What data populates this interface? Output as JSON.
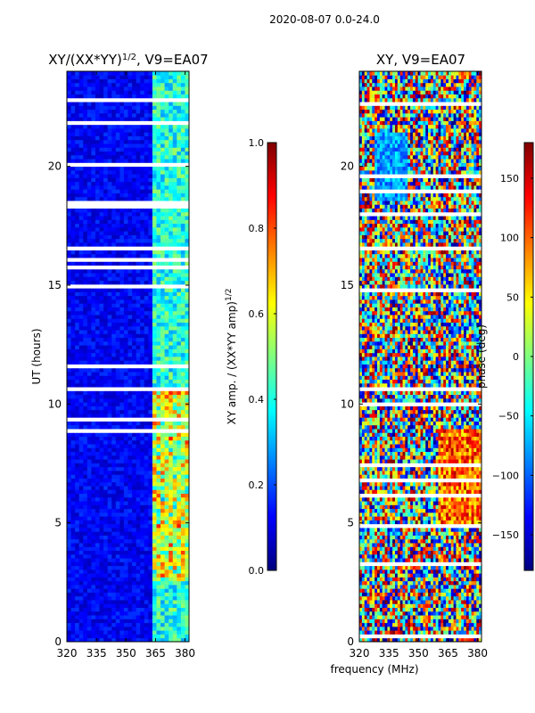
{
  "figure_title": "2020-08-07 0.0-24.0",
  "colors": {
    "jet": [
      "#00007f",
      "#0000ff",
      "#007fff",
      "#00ffff",
      "#7fff7f",
      "#ffff00",
      "#ff7f00",
      "#ff0000",
      "#7f0000"
    ],
    "gap": "#ffffff"
  },
  "chart_data": [
    {
      "type": "heatmap",
      "title_main": "XY/(XX*YY)",
      "title_sup": "1/2",
      "title_suffix": ", V9=EA07",
      "xlabel": "",
      "ylabel": "UT (hours)",
      "xlim": [
        320,
        382
      ],
      "ylim": [
        0,
        24
      ],
      "xticks": [
        320,
        335,
        350,
        365,
        380
      ],
      "yticks": [
        0,
        5,
        10,
        15,
        20
      ],
      "colorbar": {
        "label_main": "XY amp. / (XX*YY amp)",
        "label_sup": "1/2",
        "lim": [
          0.0,
          1.0
        ],
        "ticks": [
          "0.0",
          "0.2",
          "0.4",
          "0.6",
          "0.8",
          "1.0"
        ],
        "tick_values": [
          0.0,
          0.2,
          0.4,
          0.6,
          0.8,
          1.0
        ]
      }
    },
    {
      "type": "heatmap",
      "title_main": "XY, V9=EA07",
      "title_sup": "",
      "title_suffix": "",
      "xlabel": "frequency (MHz)",
      "ylabel": "",
      "xlim": [
        320,
        382
      ],
      "ylim": [
        0,
        24
      ],
      "xticks": [
        320,
        335,
        350,
        365,
        380
      ],
      "yticks": [
        0,
        5,
        10,
        15,
        20
      ],
      "colorbar": {
        "label_main": "phase (deg)",
        "label_sup": "",
        "lim": [
          -180,
          180
        ],
        "ticks": [
          "−150",
          "−100",
          "−50",
          "0",
          "50",
          "100",
          "150"
        ],
        "tick_values": [
          -150,
          -100,
          -50,
          0,
          50,
          100,
          150
        ]
      }
    }
  ]
}
